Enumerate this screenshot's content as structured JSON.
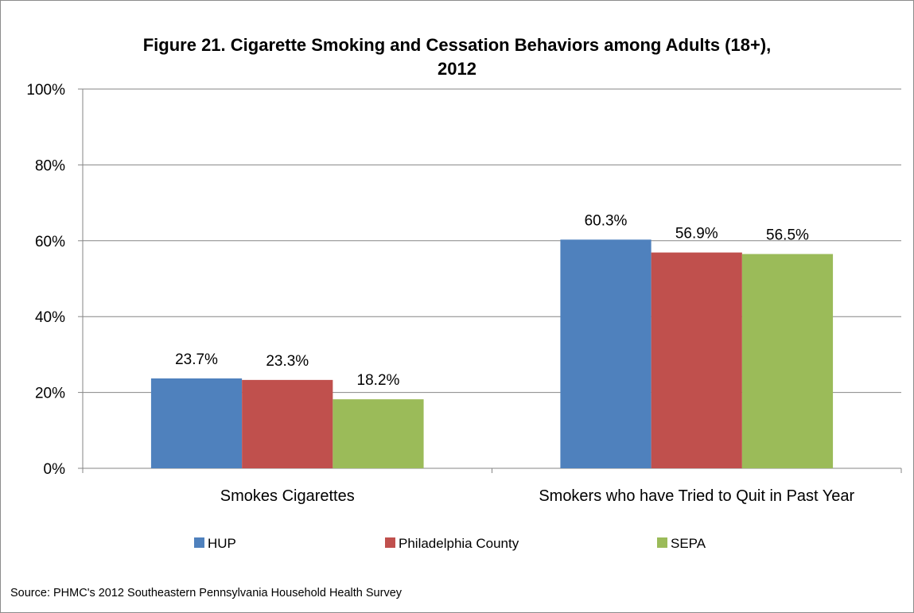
{
  "title_line1": "Figure 21. Cigarette Smoking and Cessation Behaviors among Adults (18+),",
  "title_line2": "2012",
  "source": "Source: PHMC's  2012 Southeastern Pennsylvania Household Health Survey",
  "chart_data": {
    "type": "bar",
    "title": "Figure 21. Cigarette Smoking and Cessation Behaviors among Adults (18+), 2012",
    "categories": [
      "Smokes Cigarettes",
      "Smokers who have Tried to Quit in Past Year"
    ],
    "series": [
      {
        "name": "HUP",
        "values": [
          23.7,
          60.3
        ],
        "labels": [
          "23.7%",
          "60.3%"
        ],
        "color": "#4f81bd"
      },
      {
        "name": "Philadelphia County",
        "values": [
          23.3,
          56.9
        ],
        "labels": [
          "23.3%",
          "56.9%"
        ],
        "color": "#c0504d"
      },
      {
        "name": "SEPA",
        "values": [
          18.2,
          56.5
        ],
        "labels": [
          "18.2%",
          "56.5%"
        ],
        "color": "#9bbb59"
      }
    ],
    "ylim": [
      0,
      100
    ],
    "yticks": [
      0,
      20,
      40,
      60,
      80,
      100
    ],
    "ytick_labels": [
      "0%",
      "20%",
      "40%",
      "60%",
      "80%",
      "100%"
    ],
    "grid": true,
    "legend_position": "bottom"
  }
}
